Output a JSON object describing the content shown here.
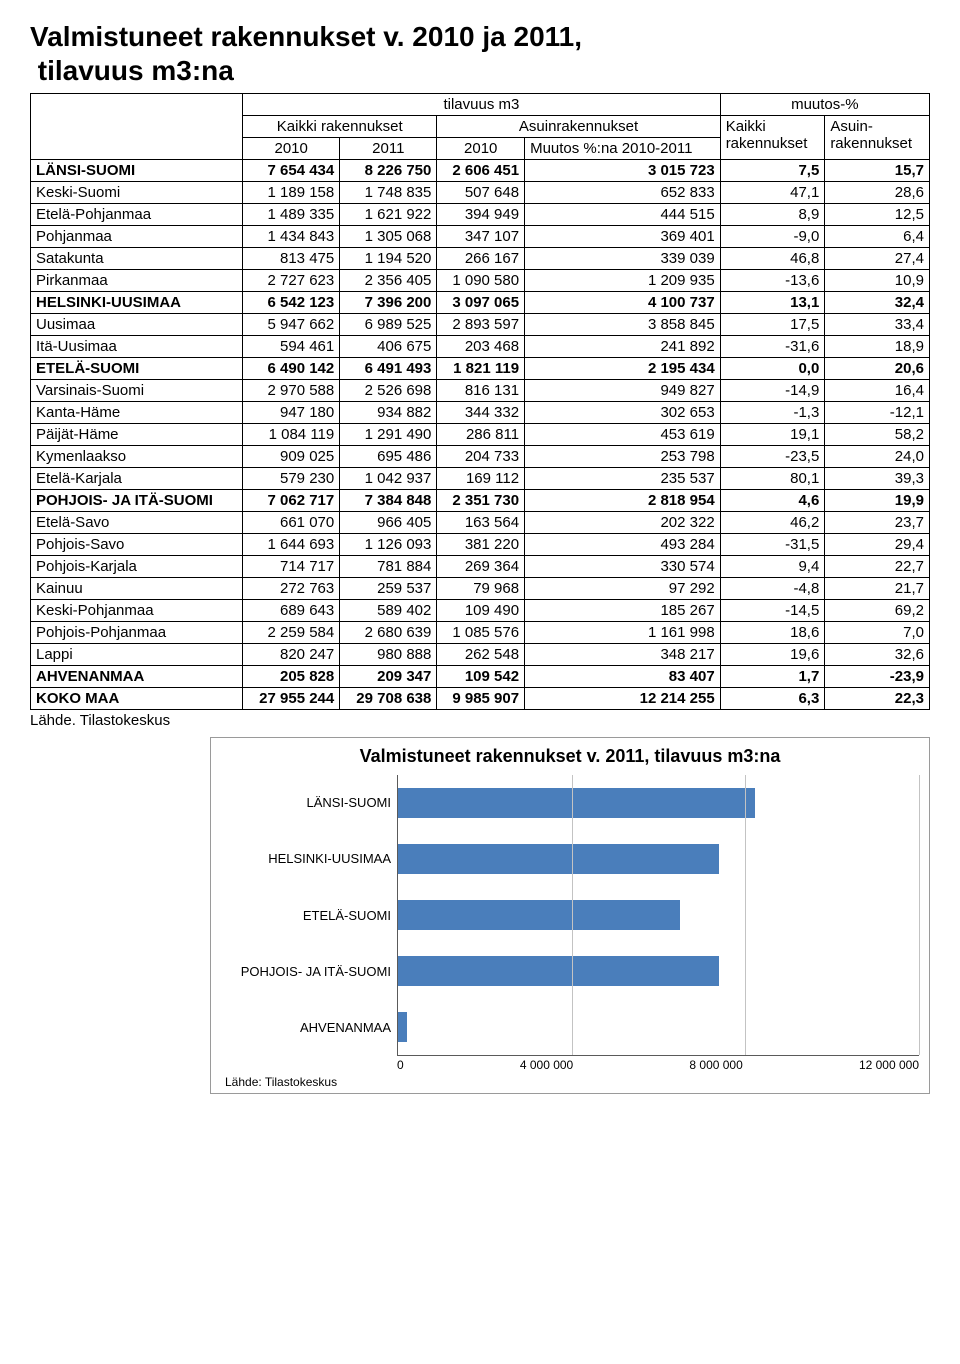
{
  "title_line1": "Valmistuneet rakennukset v. 2010 ja 2011,",
  "title_line2": "tilavuus m3:na",
  "header": {
    "col1": "tilavuus m3",
    "col2": "muutos-%",
    "sub_all": "Kaikki rakennukset",
    "sub_dwell": "Asuinrakennukset",
    "sub_all2": "Kaikki rakennukset",
    "sub_dwell2": "Asuin-rakennukset",
    "y2010": "2010",
    "y2011": "2011",
    "period": "Muutos %:na 2010-2011"
  },
  "rows": [
    {
      "name": "LÄNSI-SUOMI",
      "bold": true,
      "indent": 0,
      "v": [
        "7 654 434",
        "8 226 750",
        "2 606 451",
        "3 015 723",
        "7,5",
        "15,7"
      ]
    },
    {
      "name": "Keski-Suomi",
      "bold": false,
      "indent": 1,
      "v": [
        "1 189 158",
        "1 748 835",
        "507 648",
        "652 833",
        "47,1",
        "28,6"
      ]
    },
    {
      "name": "Etelä-Pohjanmaa",
      "bold": false,
      "indent": 1,
      "v": [
        "1 489 335",
        "1 621 922",
        "394 949",
        "444 515",
        "8,9",
        "12,5"
      ]
    },
    {
      "name": "Pohjanmaa",
      "bold": false,
      "indent": 1,
      "v": [
        "1 434 843",
        "1 305 068",
        "347 107",
        "369 401",
        "-9,0",
        "6,4"
      ]
    },
    {
      "name": "Satakunta",
      "bold": false,
      "indent": 1,
      "v": [
        "813 475",
        "1 194 520",
        "266 167",
        "339 039",
        "46,8",
        "27,4"
      ]
    },
    {
      "name": "Pirkanmaa",
      "bold": false,
      "indent": 1,
      "v": [
        "2 727 623",
        "2 356 405",
        "1 090 580",
        "1 209 935",
        "-13,6",
        "10,9"
      ]
    },
    {
      "name": "HELSINKI-UUSIMAA",
      "bold": true,
      "indent": 0,
      "v": [
        "6 542 123",
        "7 396 200",
        "3 097 065",
        "4 100 737",
        "13,1",
        "32,4"
      ]
    },
    {
      "name": "Uusimaa",
      "bold": false,
      "indent": 1,
      "v": [
        "5 947 662",
        "6 989 525",
        "2 893 597",
        "3 858 845",
        "17,5",
        "33,4"
      ]
    },
    {
      "name": "Itä-Uusimaa",
      "bold": false,
      "indent": 1,
      "v": [
        "594 461",
        "406 675",
        "203 468",
        "241 892",
        "-31,6",
        "18,9"
      ]
    },
    {
      "name": "ETELÄ-SUOMI",
      "bold": true,
      "indent": 0,
      "v": [
        "6 490 142",
        "6 491 493",
        "1 821 119",
        "2 195 434",
        "0,0",
        "20,6"
      ]
    },
    {
      "name": "Varsinais-Suomi",
      "bold": false,
      "indent": 1,
      "v": [
        "2 970 588",
        "2 526 698",
        "816 131",
        "949 827",
        "-14,9",
        "16,4"
      ]
    },
    {
      "name": "Kanta-Häme",
      "bold": false,
      "indent": 1,
      "v": [
        "947 180",
        "934 882",
        "344 332",
        "302 653",
        "-1,3",
        "-12,1"
      ]
    },
    {
      "name": "Päijät-Häme",
      "bold": false,
      "indent": 1,
      "v": [
        "1 084 119",
        "1 291 490",
        "286 811",
        "453 619",
        "19,1",
        "58,2"
      ]
    },
    {
      "name": "Kymenlaakso",
      "bold": false,
      "indent": 1,
      "v": [
        "909 025",
        "695 486",
        "204 733",
        "253 798",
        "-23,5",
        "24,0"
      ]
    },
    {
      "name": "Etelä-Karjala",
      "bold": false,
      "indent": 1,
      "v": [
        "579 230",
        "1 042 937",
        "169 112",
        "235 537",
        "80,1",
        "39,3"
      ]
    },
    {
      "name": "POHJOIS- JA ITÄ-SUOMI",
      "bold": true,
      "indent": 0,
      "v": [
        "7 062 717",
        "7 384 848",
        "2 351 730",
        "2 818 954",
        "4,6",
        "19,9"
      ]
    },
    {
      "name": "Etelä-Savo",
      "bold": false,
      "indent": 1,
      "v": [
        "661 070",
        "966 405",
        "163 564",
        "202 322",
        "46,2",
        "23,7"
      ]
    },
    {
      "name": "Pohjois-Savo",
      "bold": false,
      "indent": 2,
      "v": [
        "1 644 693",
        "1 126 093",
        "381 220",
        "493 284",
        "-31,5",
        "29,4"
      ]
    },
    {
      "name": "Pohjois-Karjala",
      "bold": false,
      "indent": 2,
      "v": [
        "714 717",
        "781 884",
        "269 364",
        "330 574",
        "9,4",
        "22,7"
      ]
    },
    {
      "name": "Kainuu",
      "bold": false,
      "indent": 2,
      "v": [
        "272 763",
        "259 537",
        "79 968",
        "97 292",
        "-4,8",
        "21,7"
      ]
    },
    {
      "name": "Keski-Pohjanmaa",
      "bold": false,
      "indent": 1,
      "v": [
        "689 643",
        "589 402",
        "109 490",
        "185 267",
        "-14,5",
        "69,2"
      ]
    },
    {
      "name": "Pohjois-Pohjanmaa",
      "bold": false,
      "indent": 1,
      "v": [
        "2 259 584",
        "2 680 639",
        "1 085 576",
        "1 161 998",
        "18,6",
        "7,0"
      ]
    },
    {
      "name": "Lappi",
      "bold": false,
      "indent": 1,
      "v": [
        "820 247",
        "980 888",
        "262 548",
        "348 217",
        "19,6",
        "32,6"
      ]
    },
    {
      "name": "AHVENANMAA",
      "bold": true,
      "indent": 0,
      "v": [
        "205 828",
        "209 347",
        "109 542",
        "83 407",
        "1,7",
        "-23,9"
      ]
    },
    {
      "name": "KOKO MAA",
      "bold": true,
      "indent": 0,
      "v": [
        "27 955 244",
        "29 708 638",
        "9 985 907",
        "12 214 255",
        "6,3",
        "22,3"
      ]
    }
  ],
  "source": "Lähde. Tilastokeskus",
  "chart": {
    "title": "Valmistuneet rakennukset v. 2011, tilavuus m3:na",
    "categories": [
      "LÄNSI-SUOMI",
      "HELSINKI-UUSIMAA",
      "ETELÄ-SUOMI",
      "POHJOIS- JA ITÄ-SUOMI",
      "AHVENANMAA"
    ],
    "values": [
      8226750,
      7396200,
      6491493,
      7384848,
      209347
    ],
    "xmax": 12000000,
    "xticks": [
      0,
      4000000,
      8000000,
      12000000
    ],
    "xtick_labels": [
      "0",
      "4 000 000",
      "8 000 000",
      "12 000 000"
    ],
    "bar_color": "#4a7ebb",
    "grid_color": "#c3c3c3",
    "source": "Lähde: Tilastokeskus"
  }
}
